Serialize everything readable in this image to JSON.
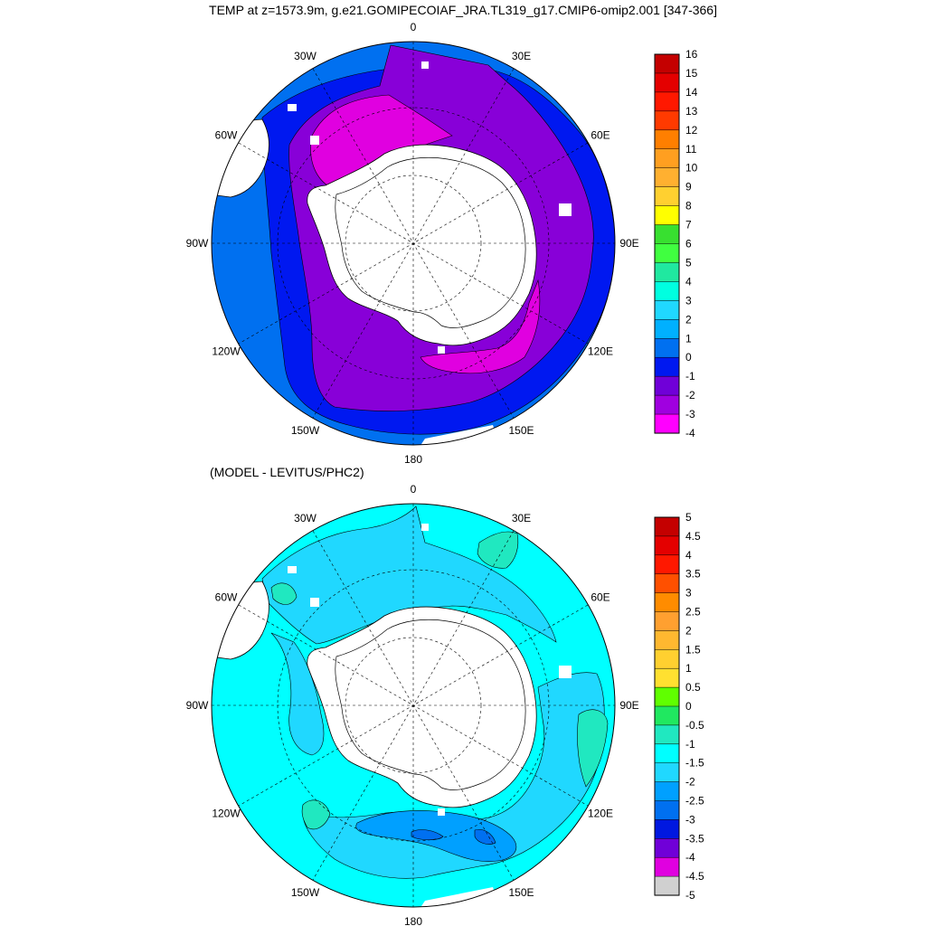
{
  "title": "TEMP at z=1573.9m, g.e21.GOMIPECOIAF_JRA.TL319_g17.CMIP6-omip2.001 [347-366]",
  "panels": [
    {
      "subtitle": "",
      "lon_labels": [
        "0",
        "30E",
        "60E",
        "90E",
        "120E",
        "150E",
        "180",
        "150W",
        "120W",
        "90W",
        "60W",
        "30W"
      ],
      "colorbar_labels": [
        "16",
        "15",
        "14",
        "13",
        "12",
        "11",
        "10",
        "9",
        "8",
        "7",
        "6",
        "5",
        "4",
        "3",
        "2",
        "1",
        "0",
        "-1",
        "-2",
        "-3",
        "-4"
      ],
      "colorbar_colors": [
        "#c40000",
        "#e40000",
        "#ff1800",
        "#ff3a00",
        "#ff7f00",
        "#ff9f20",
        "#ffb030",
        "#ffd030",
        "#ffff00",
        "#38e030",
        "#40ff40",
        "#20e8a0",
        "#00ffe0",
        "#20d8ff",
        "#00b0ff",
        "#0070f0",
        "#0018f0",
        "#7000d8",
        "#a000e0",
        "#ff00ff",
        "#d0d0d0",
        "#707070"
      ]
    },
    {
      "subtitle": "(MODEL - LEVITUS/PHC2)",
      "lon_labels": [
        "0",
        "30E",
        "60E",
        "90E",
        "120E",
        "150E",
        "180",
        "150W",
        "120W",
        "90W",
        "60W",
        "30W"
      ],
      "colorbar_labels": [
        "5",
        "4.5",
        "4",
        "3.5",
        "3",
        "2.5",
        "2",
        "1.5",
        "1",
        "0.5",
        "0",
        "-0.5",
        "-1",
        "-1.5",
        "-2",
        "-2.5",
        "-3",
        "-3.5",
        "-4",
        "-4.5",
        "-5"
      ],
      "colorbar_colors": [
        "#c40000",
        "#e40000",
        "#ff1800",
        "#ff5000",
        "#ff8c00",
        "#ffa030",
        "#ffb830",
        "#ffd030",
        "#ffe030",
        "#60ff00",
        "#20e860",
        "#20e8c0",
        "#00ffff",
        "#20d8ff",
        "#00a0ff",
        "#0070f0",
        "#0018e0",
        "#7000d8",
        "#e000e0",
        "#d0d0d0",
        "#707070"
      ]
    }
  ]
}
